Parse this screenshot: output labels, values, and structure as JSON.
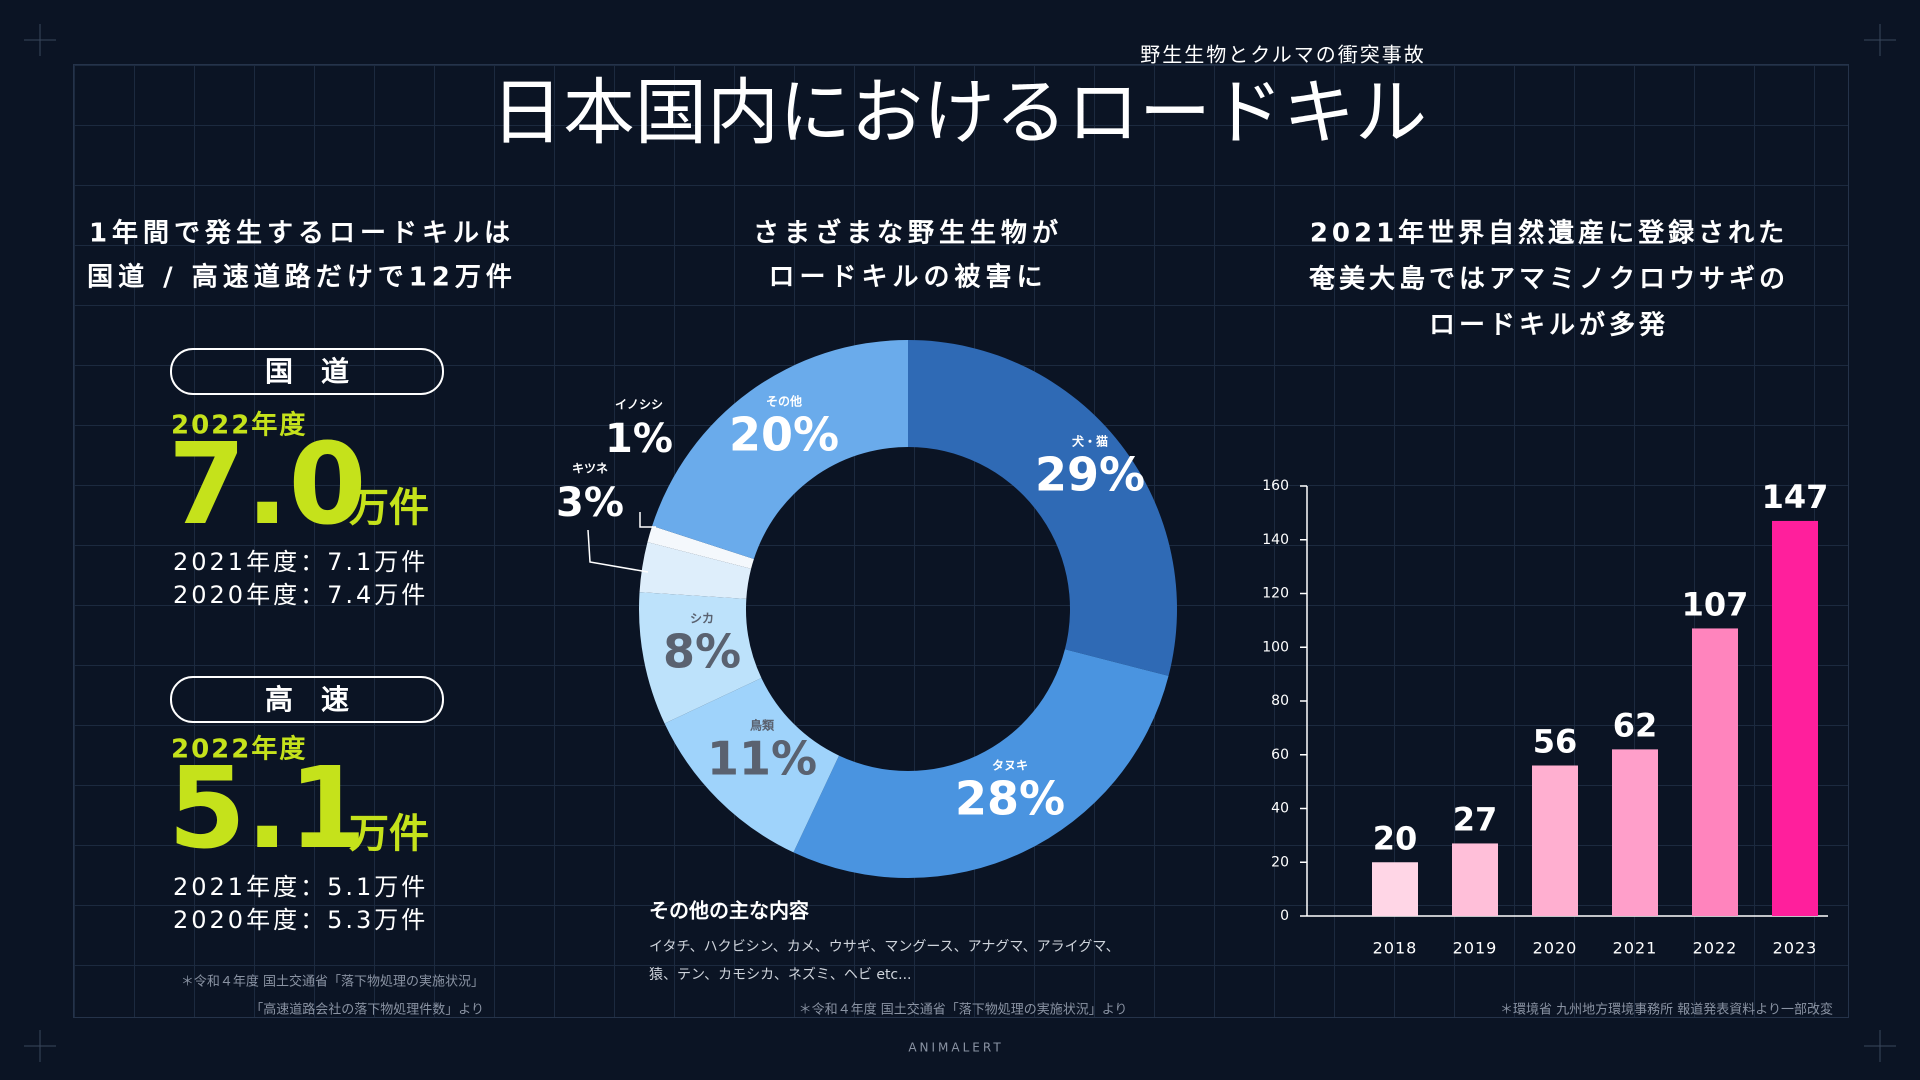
{
  "header": {
    "subtitle": "野生生物とクルマの衝突事故",
    "title": "日本国内におけるロードキル"
  },
  "left": {
    "heading": [
      "1年間で発生するロードキルは",
      "国道 / 高速道路だけで12万件"
    ],
    "sections": [
      {
        "pill": "国　道",
        "year": "2022年度",
        "value": "7.0",
        "unit": "万件",
        "history": [
          "2021年度：7.1万件",
          "2020年度：7.4万件"
        ]
      },
      {
        "pill": "高　速",
        "year": "2022年度",
        "value": "5.1",
        "unit": "万件",
        "history": [
          "2021年度：5.1万件",
          "2020年度：5.3万件"
        ]
      }
    ],
    "notes": [
      "＊令和４年度 国土交通省「落下物処理の実施状況」",
      "「高速道路会社の落下物処理件数」より"
    ]
  },
  "middle": {
    "heading": [
      "さまざまな野生生物が",
      "ロードキルの被害に"
    ],
    "others_title": "その他の主な内容",
    "others_lines": [
      "イタチ、ハクビシン、カメ、ウサギ、マングース、アナグマ、アライグマ、",
      "猿、テン、カモシカ、ネズミ、ヘビ etc..."
    ],
    "note": "＊令和４年度 国土交通省「落下物処理の実施状況」より"
  },
  "right": {
    "heading": [
      "2021年世界自然遺産に登録された",
      "奄美大島ではアマミノクロウサギの",
      "ロードキルが多発"
    ],
    "note": "＊環境省 九州地方環境事務所 報道発表資料より一部改変"
  },
  "brand": "ANIMALERT",
  "chart_data": [
    {
      "type": "donut",
      "categories": [
        "犬・猫",
        "タヌキ",
        "鳥類",
        "シカ",
        "キツネ",
        "イノシシ",
        "その他"
      ],
      "values": [
        29,
        28,
        11,
        8,
        3,
        1,
        20
      ],
      "value_labels": [
        "29%",
        "28%",
        "11%",
        "8%",
        "3%",
        "1%",
        "20%"
      ],
      "colors": [
        "#2f6ab5",
        "#4a94e0",
        "#9fd3fb",
        "#bde2fb",
        "#deeefb",
        "#f4f8fc",
        "#6aabeb"
      ]
    },
    {
      "type": "bar",
      "categories": [
        "2018",
        "2019",
        "2020",
        "2021",
        "2022",
        "2023"
      ],
      "values": [
        20,
        27,
        56,
        62,
        107,
        147
      ],
      "colors": [
        "#ffd6e6",
        "#ffbfd9",
        "#ffafd0",
        "#ff9fca",
        "#ff84bd",
        "#ff1f9c"
      ],
      "ylim": [
        0,
        160
      ],
      "yticks": [
        0,
        20,
        40,
        60,
        80,
        100,
        120,
        140,
        160
      ]
    }
  ]
}
